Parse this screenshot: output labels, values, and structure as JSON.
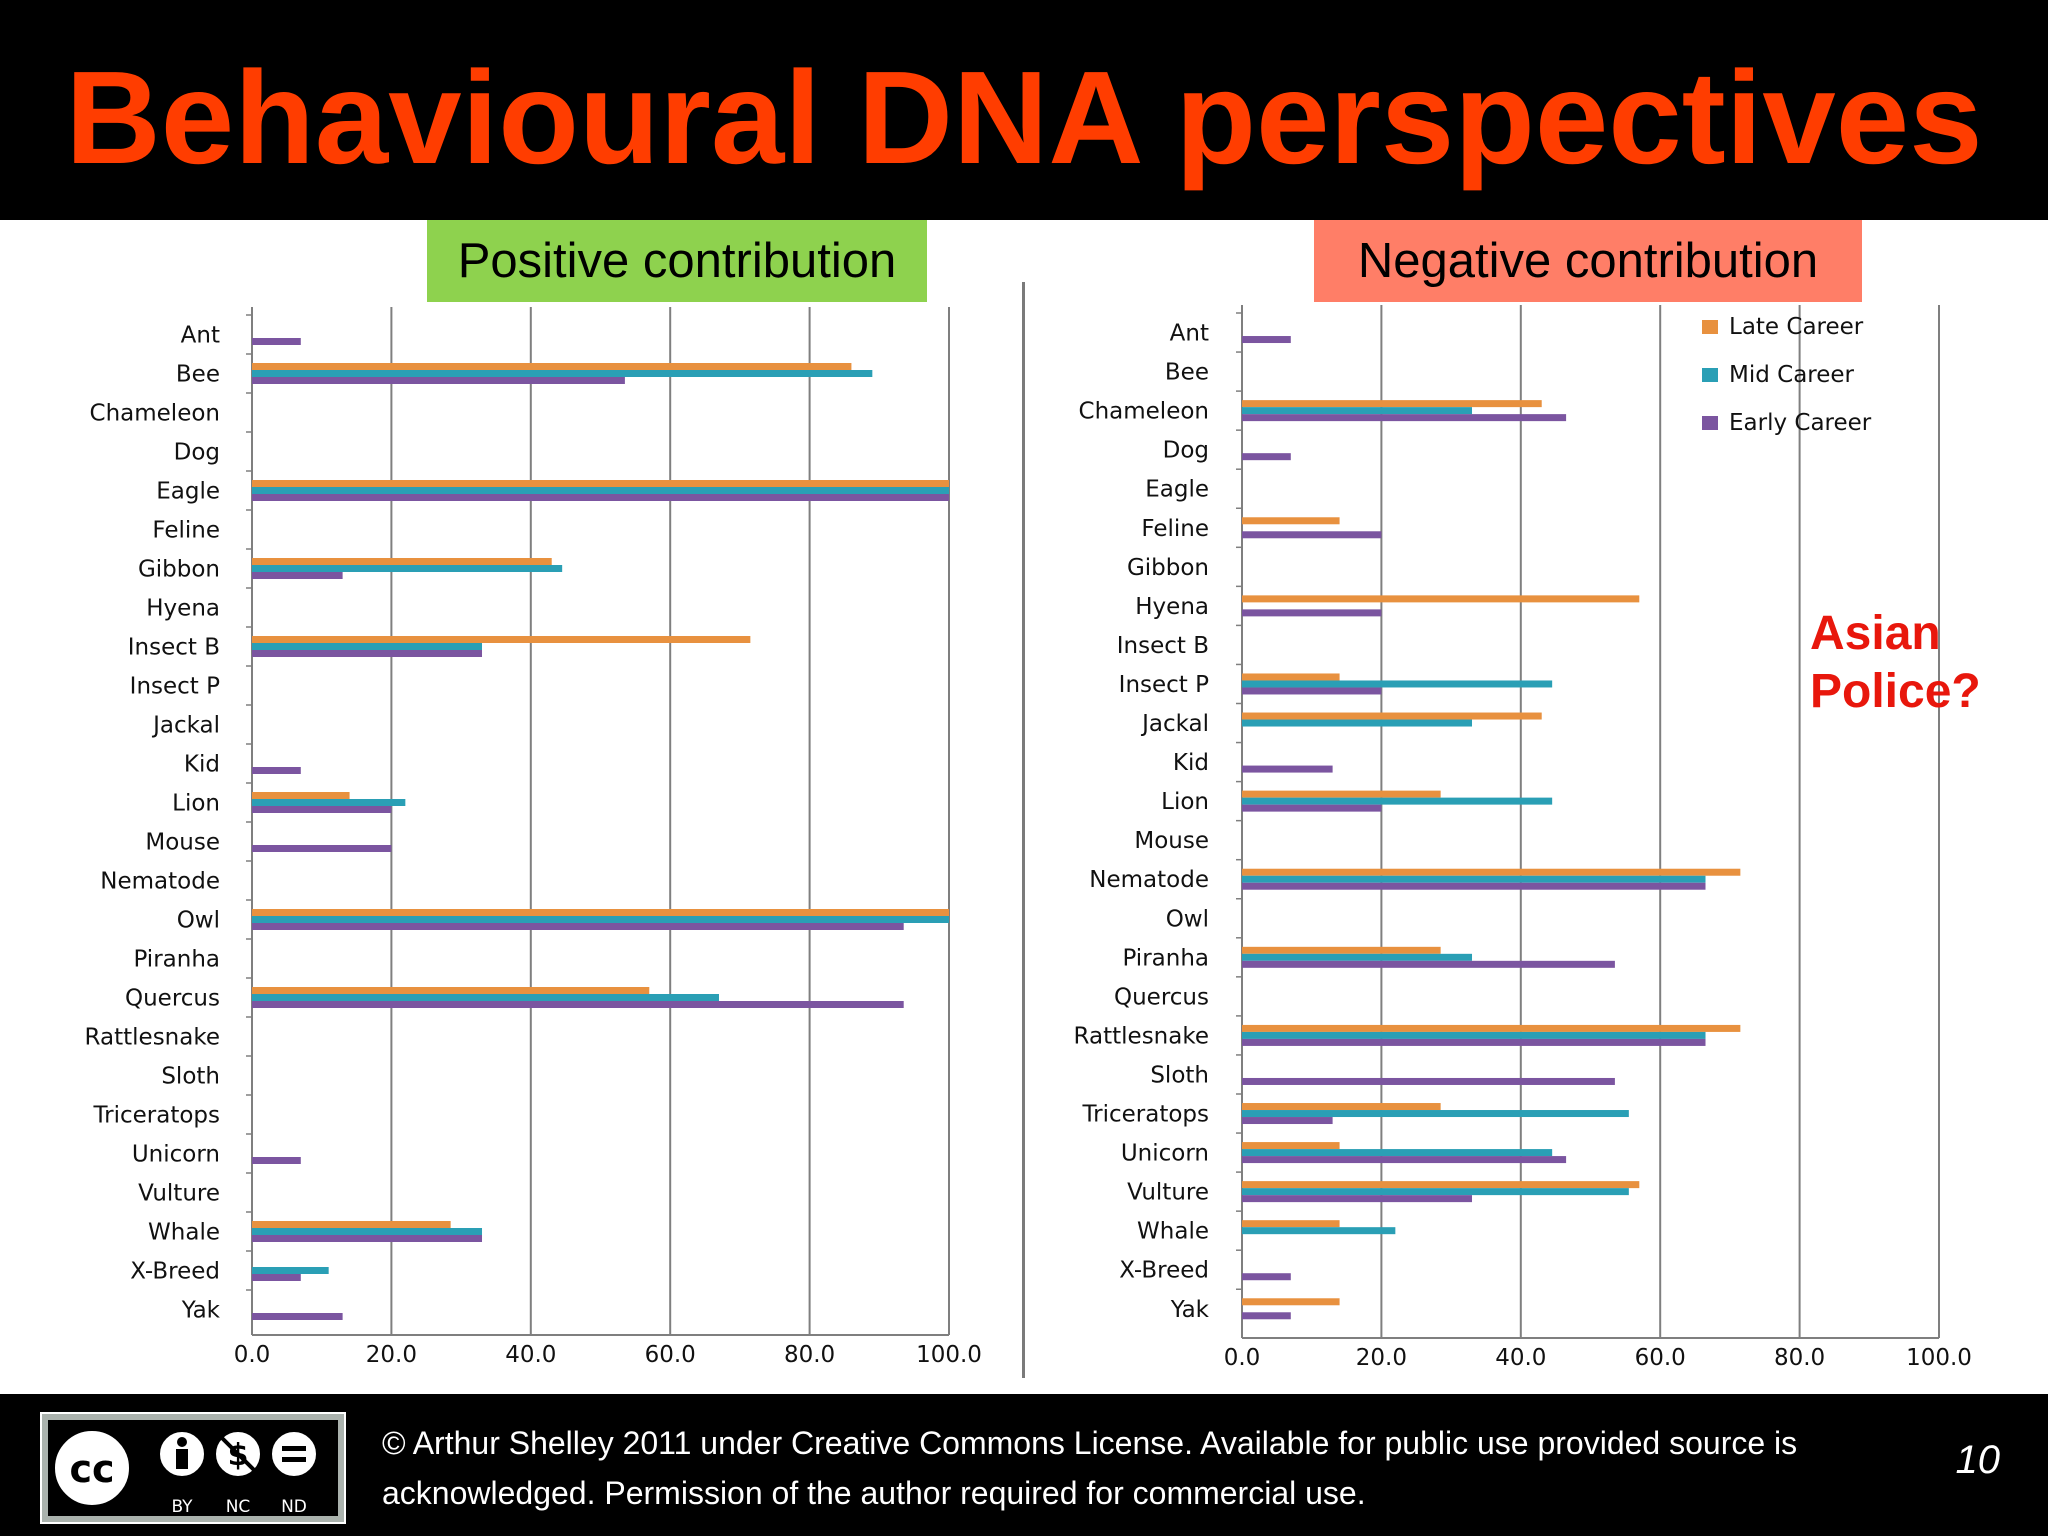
{
  "slide": {
    "title": "Behavioural DNA perspectives",
    "annotation": "Asian\nPolice?",
    "footer_text": "© Arthur Shelley 2011 under Creative Commons License.  Available for public use provided source is acknowledged.  Permission of the author required for commercial use.",
    "page_number": "10",
    "badge_labels": [
      "BY",
      "NC",
      "ND"
    ],
    "badge_cc": "cc",
    "colors": {
      "title": "#ff3d00",
      "positive_label_bg": "#8ed24e",
      "negative_label_bg": "#ff7e67",
      "annotation": "#e8170c"
    }
  },
  "chart_data": [
    {
      "type": "bar",
      "orientation": "horizontal",
      "label": "Positive contribution",
      "categories": [
        "Ant",
        "Bee",
        "Chameleon",
        "Dog",
        "Eagle",
        "Feline",
        "Gibbon",
        "Hyena",
        "Insect B",
        "Insect P",
        "Jackal",
        "Kid",
        "Lion",
        "Mouse",
        "Nematode",
        "Owl",
        "Piranha",
        "Quercus",
        "Rattlesnake",
        "Sloth",
        "Triceratops",
        "Unicorn",
        "Vulture",
        "Whale",
        "X-Breed",
        "Yak"
      ],
      "series": [
        {
          "name": "Late Career",
          "color": "#e8913f",
          "values": [
            0,
            86,
            0,
            0,
            100,
            0,
            43,
            0,
            71.5,
            0,
            0,
            0,
            14,
            0,
            0,
            100,
            0,
            57,
            0,
            0,
            0,
            0,
            0,
            28.5,
            0,
            0
          ]
        },
        {
          "name": "Mid Career",
          "color": "#2a9fb5",
          "values": [
            0,
            89,
            0,
            0,
            100,
            0,
            44.5,
            0,
            33,
            0,
            0,
            0,
            22,
            0,
            0,
            100,
            0,
            67,
            0,
            0,
            0,
            0,
            0,
            33,
            11,
            0
          ]
        },
        {
          "name": "Early Career",
          "color": "#7b55a0",
          "values": [
            7,
            53.5,
            0,
            0,
            100,
            0,
            13,
            0,
            33,
            0,
            0,
            7,
            20,
            20,
            0,
            93.5,
            0,
            93.5,
            0,
            0,
            0,
            7,
            0,
            33,
            7,
            13
          ]
        }
      ],
      "xlim": [
        0,
        100
      ],
      "xticks": [
        "0.0",
        "20.0",
        "40.0",
        "60.0",
        "80.0",
        "100.0"
      ],
      "grid": true
    },
    {
      "type": "bar",
      "orientation": "horizontal",
      "label": "Negative contribution",
      "categories": [
        "Ant",
        "Bee",
        "Chameleon",
        "Dog",
        "Eagle",
        "Feline",
        "Gibbon",
        "Hyena",
        "Insect B",
        "Insect P",
        "Jackal",
        "Kid",
        "Lion",
        "Mouse",
        "Nematode",
        "Owl",
        "Piranha",
        "Quercus",
        "Rattlesnake",
        "Sloth",
        "Triceratops",
        "Unicorn",
        "Vulture",
        "Whale",
        "X-Breed",
        "Yak"
      ],
      "series": [
        {
          "name": "Late Career",
          "color": "#e8913f",
          "values": [
            0,
            0,
            43,
            0,
            0,
            14,
            0,
            57,
            0,
            14,
            43,
            0,
            28.5,
            0,
            71.5,
            0,
            28.5,
            0,
            71.5,
            0,
            28.5,
            14,
            57,
            14,
            0,
            14
          ]
        },
        {
          "name": "Mid Career",
          "color": "#2a9fb5",
          "values": [
            0,
            0,
            33,
            0,
            0,
            0,
            0,
            0,
            0,
            44.5,
            33,
            0,
            44.5,
            0,
            66.5,
            0,
            33,
            0,
            66.5,
            0,
            55.5,
            44.5,
            55.5,
            22,
            0,
            0
          ]
        },
        {
          "name": "Early Career",
          "color": "#7b55a0",
          "values": [
            7,
            0,
            46.5,
            7,
            0,
            20,
            0,
            20,
            0,
            20,
            0,
            13,
            20,
            0,
            66.5,
            0,
            53.5,
            0,
            66.5,
            53.5,
            13,
            46.5,
            33,
            0,
            7,
            7
          ]
        }
      ],
      "xlim": [
        0,
        100
      ],
      "xticks": [
        "0.0",
        "20.0",
        "40.0",
        "60.0",
        "80.0",
        "100.0"
      ],
      "grid": true,
      "legend": {
        "placement": "top-right",
        "entries": [
          "Late Career",
          "Mid Career",
          "Early Career"
        ]
      }
    }
  ]
}
